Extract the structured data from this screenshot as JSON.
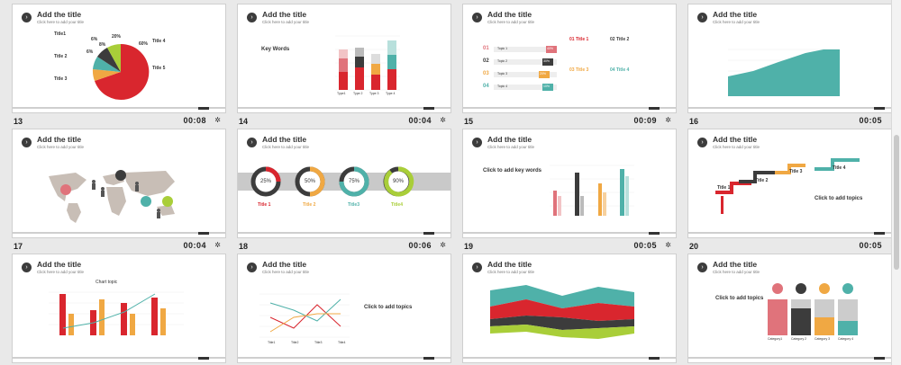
{
  "slides": [
    {
      "title": "Add the title",
      "subtitle": "Click here to add your title",
      "number": "13",
      "duration": "00:08"
    },
    {
      "title": "Add the title",
      "subtitle": "Click here to add your title",
      "number": "14",
      "duration": "00:04"
    },
    {
      "title": "Add the title",
      "subtitle": "Click here to add your title",
      "number": "15",
      "duration": "00:09"
    },
    {
      "title": "Add the title",
      "subtitle": "Click here to add your title",
      "number": "16",
      "duration": "00:05"
    },
    {
      "title": "Add the title",
      "subtitle": "Click here to add your title",
      "number": "17",
      "duration": "00:04"
    },
    {
      "title": "Add the title",
      "subtitle": "Click here to add your title",
      "number": "18",
      "duration": "00:06"
    },
    {
      "title": "Add the title",
      "subtitle": "Click here to add your title",
      "number": "19",
      "duration": "00:05"
    },
    {
      "title": "Add the title",
      "subtitle": "Click here to add your title",
      "number": "20",
      "duration": "00:05"
    },
    {
      "title": "Add the title",
      "subtitle": "Click here to add your title",
      "number": "",
      "duration": ""
    },
    {
      "title": "Add the title",
      "subtitle": "Click here to add your title",
      "number": "",
      "duration": ""
    },
    {
      "title": "Add the title",
      "subtitle": "Click here to add your title",
      "number": "",
      "duration": ""
    },
    {
      "title": "Add the title",
      "subtitle": "Click here to add your title",
      "number": "",
      "duration": ""
    }
  ],
  "s13": {
    "titles": [
      "Title1",
      "Title 2",
      "Title 3",
      "Title 4",
      "Title 5"
    ],
    "pcts": [
      "6%",
      "8%",
      "20%",
      "60%",
      "6%"
    ]
  },
  "s14": {
    "heading": "Key Words",
    "types": [
      "Type1",
      "Type 2",
      "Type 3",
      "Type 4"
    ]
  },
  "s15": {
    "rows": [
      "01",
      "02",
      "03",
      "04"
    ],
    "topics": [
      "Topic 1",
      "Topic 2",
      "Topic 3",
      "Topic 4"
    ],
    "pcts": [
      "40%",
      "30%",
      "20%",
      "10%"
    ],
    "titles": [
      "01 Title 1",
      "02 Title 2",
      "03 Title 3",
      "04 Title 4"
    ]
  },
  "s18": {
    "pcts": [
      "25%",
      "50%",
      "75%",
      "90%"
    ],
    "titles": [
      "Title 1",
      "Title 2",
      "Title3",
      "Title4"
    ]
  },
  "s19": {
    "heading": "Click to add key words"
  },
  "s20": {
    "steps": [
      "Title 1",
      "Title 2",
      "Title 3",
      "Title 4"
    ],
    "topic": "Click to add topics"
  },
  "s21": {
    "chart_title": "Chart topic"
  },
  "s22": {
    "topic": "Click to add topics",
    "categories": [
      "Title1",
      "Title2",
      "Title3",
      "Title4"
    ]
  },
  "s24": {
    "topic": "Click to add topics",
    "labels": [
      "Category1",
      "Category 2",
      "Category 3",
      "Category 4"
    ]
  },
  "colors": {
    "red": "#d9262e",
    "gray": "#3c3c3c",
    "orange": "#f0a843",
    "teal": "#4fb1a9",
    "green": "#a9ce39",
    "pink": "#e0737b"
  }
}
